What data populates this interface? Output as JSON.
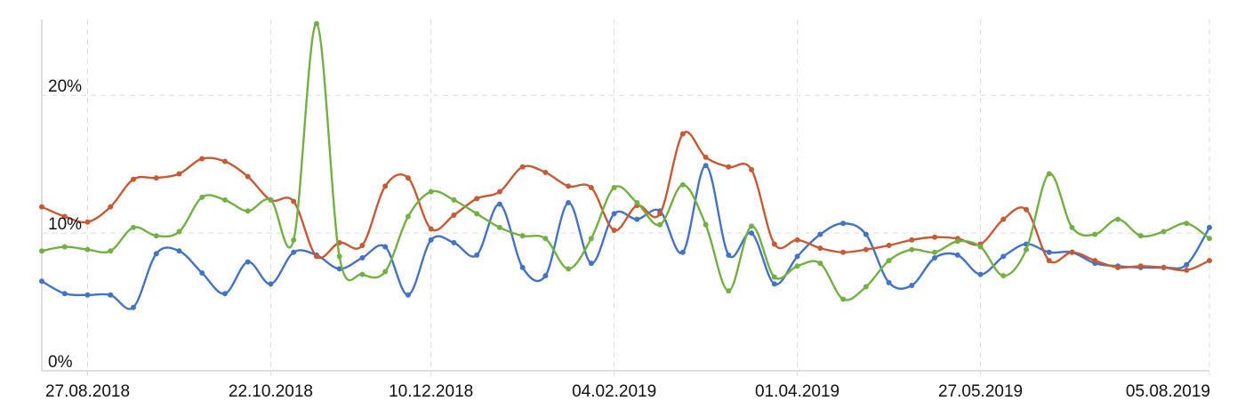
{
  "chart_data": {
    "type": "line",
    "title": "",
    "xlabel": "",
    "ylabel": "",
    "ylim": [
      0,
      25.5
    ],
    "y_ticks": [
      {
        "value": 0,
        "label": "0%"
      },
      {
        "value": 10,
        "label": "10%"
      },
      {
        "value": 20,
        "label": "20%"
      }
    ],
    "x_ticks": [
      {
        "value": 2,
        "label": "27.08.2018"
      },
      {
        "value": 10,
        "label": "22.10.2018"
      },
      {
        "value": 17,
        "label": "10.12.2018"
      },
      {
        "value": 25,
        "label": "04.02.2019"
      },
      {
        "value": 33,
        "label": "01.04.2019"
      },
      {
        "value": 41,
        "label": "27.05.2019"
      },
      {
        "value": 51,
        "label": "05.08.2019"
      }
    ],
    "x_range": [
      0,
      51
    ],
    "grid": true,
    "series": [
      {
        "color": "#4472c4",
        "values": [
          6.5,
          5.6,
          5.5,
          5.5,
          4.6,
          8.5,
          8.7,
          7.1,
          5.6,
          7.9,
          6.3,
          8.6,
          8.4,
          7.4,
          8.2,
          9.0,
          5.5,
          9.5,
          9.3,
          8.4,
          12.1,
          7.5,
          6.9,
          12.2,
          7.8,
          11.4,
          11.0,
          11.6,
          8.6,
          14.9,
          8.4,
          10.0,
          6.3,
          8.3,
          9.9,
          10.7,
          9.9,
          6.4,
          6.2,
          8.2,
          8.4,
          7.0,
          8.3,
          9.2,
          8.6,
          8.6,
          7.8,
          7.6,
          7.5,
          7.5,
          7.7,
          10.4
        ]
      },
      {
        "color": "#c55a35",
        "values": [
          11.9,
          11.2,
          10.8,
          11.9,
          13.9,
          14.0,
          14.3,
          15.4,
          15.2,
          14.1,
          12.4,
          12.3,
          8.3,
          9.3,
          9.1,
          13.4,
          14.0,
          10.3,
          11.3,
          12.5,
          13.0,
          14.8,
          14.4,
          13.4,
          13.3,
          10.2,
          12.0,
          11.4,
          17.2,
          15.5,
          14.8,
          14.6,
          9.2,
          9.5,
          8.9,
          8.6,
          8.8,
          9.1,
          9.5,
          9.7,
          9.6,
          9.2,
          11.0,
          11.7,
          8.0,
          8.6,
          8.0,
          7.5,
          7.6,
          7.5,
          7.3,
          8.0
        ]
      },
      {
        "color": "#72b044",
        "values": [
          8.7,
          9.0,
          8.8,
          8.7,
          10.4,
          9.8,
          10.1,
          12.6,
          12.4,
          11.6,
          12.4,
          9.5,
          25.2,
          8.3,
          7.0,
          7.2,
          11.2,
          13.0,
          12.4,
          11.4,
          10.4,
          9.8,
          9.6,
          7.4,
          9.6,
          13.3,
          12.2,
          10.6,
          13.5,
          10.6,
          5.8,
          10.5,
          6.8,
          7.6,
          7.8,
          5.2,
          6.1,
          8.0,
          8.8,
          8.6,
          9.4,
          9.0,
          6.9,
          8.8,
          14.3,
          10.4,
          9.9,
          11.0,
          9.8,
          10.1,
          10.7,
          9.6
        ]
      }
    ]
  }
}
